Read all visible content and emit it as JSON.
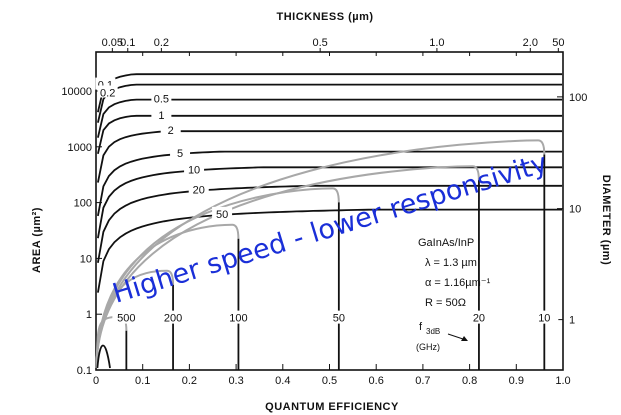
{
  "chart_data": {
    "type": "line",
    "title": "",
    "xlabel": "QUANTUM EFFICIENCY",
    "ylabel": "AREA (µm²)",
    "top_axis_label": "THICKNESS (µm)",
    "right_axis_label": "DIAMETER (µm)",
    "xlim": [
      0,
      1.0
    ],
    "ylim": [
      0.1,
      50000
    ],
    "y_scale": "log",
    "x_ticks": [
      "0",
      "0.1",
      "0.2",
      "0.3",
      "0.4",
      "0.5",
      "0.6",
      "0.7",
      "0.8",
      "0.9",
      "1.0"
    ],
    "y_ticks": [
      {
        "value": 0.1,
        "label": "0.1"
      },
      {
        "value": 1,
        "label": "1"
      },
      {
        "value": 10,
        "label": "10"
      },
      {
        "value": 100,
        "label": "100"
      },
      {
        "value": 1000,
        "label": "1000"
      },
      {
        "value": 10000,
        "label": "10000"
      }
    ],
    "top_ticks": [
      {
        "x": 0.035,
        "label": "0.05"
      },
      {
        "x": 0.068,
        "label": "0.1"
      },
      {
        "x": 0.14,
        "label": "0.2"
      },
      {
        "x": 0.48,
        "label": "0.5"
      },
      {
        "x": 0.73,
        "label": "1.0"
      },
      {
        "x": 0.93,
        "label": "2.0"
      },
      {
        "x": 0.99,
        "label": "50"
      }
    ],
    "right_ticks": [
      {
        "area": 0.8,
        "label": "1"
      },
      {
        "area": 78,
        "label": "10"
      },
      {
        "area": 7850,
        "label": "100"
      }
    ],
    "top_contours": [
      {
        "label": "0.1",
        "area": 20000
      },
      {
        "label": "0.2",
        "area": 13000
      },
      {
        "label": "0.5",
        "area": 7000
      },
      {
        "label": "1",
        "area": 3600
      },
      {
        "label": "2",
        "area": 1900
      },
      {
        "label": "5",
        "area": 820
      },
      {
        "label": "10",
        "area": 430
      },
      {
        "label": "20",
        "area": 200
      },
      {
        "label": "50",
        "area": 75
      }
    ],
    "transit_limited": [
      {
        "label": "500",
        "x": 0.065,
        "peak": 0.9
      },
      {
        "label": "200",
        "x": 0.165,
        "peak": 6
      },
      {
        "label": "100",
        "x": 0.305,
        "peak": 40
      },
      {
        "label": "50",
        "x": 0.52,
        "peak": 180
      },
      {
        "label": "20",
        "x": 0.82,
        "peak": 450
      },
      {
        "label": "10",
        "x": 0.96,
        "peak": 1300
      }
    ],
    "annotation_lines": [
      "GaInAs/InP",
      "λ = 1.3 µm",
      "α = 1.16µm⁻¹",
      "R = 50Ω"
    ],
    "f3db_label": "f",
    "f3db_sub": "3dB",
    "f3db_unit": "(GHz)",
    "overlay_text": "Higher speed - lower responsivity",
    "colors": {
      "curve": "#111111",
      "transit_curve": "#a8a8a8",
      "overlay": "#1a2fd8"
    }
  }
}
